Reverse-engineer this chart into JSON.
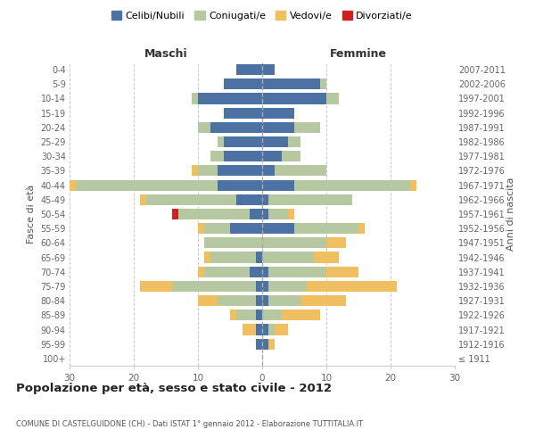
{
  "age_groups": [
    "100+",
    "95-99",
    "90-94",
    "85-89",
    "80-84",
    "75-79",
    "70-74",
    "65-69",
    "60-64",
    "55-59",
    "50-54",
    "45-49",
    "40-44",
    "35-39",
    "30-34",
    "25-29",
    "20-24",
    "15-19",
    "10-14",
    "5-9",
    "0-4"
  ],
  "birth_years": [
    "≤ 1911",
    "1912-1916",
    "1917-1921",
    "1922-1926",
    "1927-1931",
    "1932-1936",
    "1937-1941",
    "1942-1946",
    "1947-1951",
    "1952-1956",
    "1957-1961",
    "1962-1966",
    "1967-1971",
    "1972-1976",
    "1977-1981",
    "1982-1986",
    "1987-1991",
    "1992-1996",
    "1997-2001",
    "2002-2006",
    "2007-2011"
  ],
  "male": {
    "celibi": [
      0,
      1,
      1,
      1,
      1,
      1,
      2,
      1,
      0,
      5,
      2,
      4,
      7,
      7,
      6,
      6,
      8,
      6,
      10,
      6,
      4
    ],
    "coniugati": [
      0,
      0,
      0,
      3,
      6,
      13,
      7,
      7,
      9,
      4,
      11,
      14,
      22,
      3,
      2,
      1,
      2,
      0,
      1,
      0,
      0
    ],
    "vedovi": [
      0,
      0,
      2,
      1,
      3,
      5,
      1,
      1,
      0,
      1,
      0,
      1,
      1,
      1,
      0,
      0,
      0,
      0,
      0,
      0,
      0
    ],
    "divorziati": [
      0,
      0,
      0,
      0,
      0,
      0,
      0,
      0,
      0,
      0,
      1,
      0,
      0,
      0,
      0,
      0,
      0,
      0,
      0,
      0,
      0
    ]
  },
  "female": {
    "nubili": [
      0,
      1,
      1,
      0,
      1,
      1,
      1,
      0,
      0,
      5,
      1,
      1,
      5,
      2,
      3,
      4,
      5,
      5,
      10,
      9,
      2
    ],
    "coniugate": [
      0,
      0,
      1,
      3,
      5,
      6,
      9,
      8,
      10,
      10,
      3,
      13,
      18,
      8,
      3,
      2,
      4,
      0,
      2,
      1,
      0
    ],
    "vedove": [
      0,
      1,
      2,
      6,
      7,
      14,
      5,
      4,
      3,
      1,
      1,
      0,
      1,
      0,
      0,
      0,
      0,
      0,
      0,
      0,
      0
    ],
    "divorziate": [
      0,
      0,
      0,
      0,
      0,
      0,
      0,
      0,
      0,
      0,
      0,
      0,
      0,
      0,
      0,
      0,
      0,
      0,
      0,
      0,
      0
    ]
  },
  "colors": {
    "celibi": "#4c72a4",
    "coniugati": "#b5c8a0",
    "vedovi": "#f0c060",
    "divorziati": "#cc2222"
  },
  "xlim": 30,
  "title": "Popolazione per età, sesso e stato civile - 2012",
  "subtitle": "COMUNE DI CASTELGUIDONE (CH) - Dati ISTAT 1° gennaio 2012 - Elaborazione TUTTITALIA.IT",
  "ylabel_left": "Fasce di età",
  "ylabel_right": "Anni di nascita",
  "legend_labels": [
    "Celibi/Nubili",
    "Coniugati/e",
    "Vedovi/e",
    "Divorziati/e"
  ],
  "maschi_label": "Maschi",
  "femmine_label": "Femmine",
  "bg_color": "#ffffff"
}
